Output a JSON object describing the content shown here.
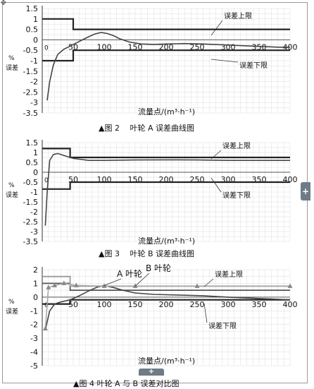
{
  "charts": [
    {
      "type": "line",
      "x_ticks": [
        "0",
        "50",
        "100",
        "150",
        "200",
        "250",
        "300",
        "350",
        "400"
      ],
      "y_ticks": [
        "1.5",
        "1",
        "0.5",
        "0",
        "-0.5",
        "-1",
        "-1.5",
        "-2",
        "-2.5",
        "-3",
        "-3.5"
      ],
      "xlim": [
        0,
        400
      ],
      "ylim": [
        -3.5,
        1.5
      ],
      "ylabel": "%\n误差",
      "xlabel": "流量点/(m³·h⁻¹)",
      "caption": "▲图 2　 叶轮 A 误差曲线图",
      "upper_label": "误差上限",
      "lower_label": "误差下限",
      "upper_limit": [
        [
          0,
          1
        ],
        [
          50,
          1
        ],
        [
          50,
          0.5
        ],
        [
          400,
          0.5
        ]
      ],
      "lower_limit": [
        [
          0,
          -1
        ],
        [
          50,
          -1
        ],
        [
          50,
          -0.5
        ],
        [
          400,
          -0.5
        ]
      ],
      "series": [
        {
          "x": [
            8,
            12,
            18,
            25,
            35,
            45,
            55,
            65,
            75,
            85,
            95,
            105,
            115,
            125,
            140,
            160,
            180,
            200,
            230,
            260,
            300,
            340,
            380,
            400
          ],
          "y": [
            -2.9,
            -2.0,
            -1.2,
            -0.7,
            -0.45,
            -0.3,
            -0.15,
            0.0,
            0.15,
            0.28,
            0.35,
            0.3,
            0.2,
            0.05,
            -0.1,
            -0.2,
            -0.22,
            -0.2,
            -0.18,
            -0.2,
            -0.25,
            -0.3,
            -0.35,
            -0.35
          ]
        }
      ]
    },
    {
      "type": "line",
      "x_ticks": [
        "0",
        "50",
        "100",
        "150",
        "200",
        "250",
        "300",
        "350",
        "400"
      ],
      "y_ticks": [
        "1.5",
        "1",
        "0.5",
        "0",
        "-0.5",
        "-1",
        "-1.5",
        "-2",
        "-2.5",
        "-3",
        "-3.5"
      ],
      "xlim": [
        0,
        400
      ],
      "ylim": [
        -3.5,
        1.5
      ],
      "ylabel": "%\n误差",
      "xlabel": "流量点/(m³·h⁻¹)",
      "caption": "▲图 3　 叶轮 B 误差曲线图",
      "upper_label": "误差上限",
      "lower_label": "误差下限",
      "upper_limit": [
        [
          0,
          1.2
        ],
        [
          45,
          1.2
        ],
        [
          45,
          0.75
        ],
        [
          400,
          0.75
        ]
      ],
      "lower_limit": [
        [
          0,
          -0.85
        ],
        [
          45,
          -0.85
        ],
        [
          45,
          -0.5
        ],
        [
          400,
          -0.5
        ]
      ],
      "series": [
        {
          "x": [
            5,
            8,
            12,
            18,
            25,
            35,
            50,
            75,
            100,
            150,
            200,
            250,
            300,
            350,
            400
          ],
          "y": [
            -2.7,
            -1.0,
            0.6,
            0.9,
            0.95,
            0.85,
            0.7,
            0.6,
            0.6,
            0.62,
            0.63,
            0.62,
            0.6,
            0.6,
            0.6
          ]
        }
      ]
    },
    {
      "type": "line",
      "x_ticks": [
        "0",
        "50",
        "100",
        "150",
        "200",
        "250",
        "300",
        "350",
        "400"
      ],
      "y_ticks": [
        "2",
        "1",
        "0",
        "-1",
        "-2",
        "-3",
        "-4",
        "-5"
      ],
      "xlim": [
        0,
        400
      ],
      "ylim": [
        -5,
        2
      ],
      "ylabel": "%\n误差",
      "xlabel": "流量点/(m³·h⁻¹)",
      "caption": "▲图 4 叶轮 A 与 B 误差对比图",
      "upper_label": "误差上限",
      "lower_label": "误差下限",
      "series_a_label": "A 叶轮",
      "series_b_label": "B 叶轮",
      "upper_limit_a": [
        [
          0,
          1
        ],
        [
          45,
          1
        ],
        [
          45,
          0.5
        ],
        [
          400,
          0.5
        ]
      ],
      "upper_limit_b": [
        [
          0,
          1.5
        ],
        [
          45,
          1.5
        ],
        [
          45,
          0.8
        ],
        [
          400,
          0.8
        ]
      ],
      "lower_limit": [
        [
          0,
          -0.5
        ],
        [
          45,
          -0.5
        ],
        [
          45,
          -0.2
        ],
        [
          400,
          -0.2
        ]
      ],
      "series": [
        {
          "x": [
            5,
            8,
            12,
            20,
            30,
            45,
            60,
            75,
            90,
            100,
            115,
            130,
            150,
            180,
            220,
            260,
            300,
            350,
            400
          ],
          "y": [
            -2.4,
            -1.8,
            -1.0,
            -0.5,
            -0.35,
            -0.2,
            0.1,
            0.45,
            0.75,
            0.85,
            0.7,
            0.5,
            0.3,
            0.2,
            0.15,
            0.1,
            0.0,
            -0.1,
            -0.2
          ]
        },
        {
          "x": [
            5,
            10,
            20,
            35,
            55,
            100,
            150,
            250,
            400
          ],
          "y": [
            -2.3,
            0.7,
            0.85,
            1.0,
            0.85,
            0.8,
            0.8,
            0.8,
            0.8
          ],
          "markers": true
        }
      ]
    }
  ]
}
